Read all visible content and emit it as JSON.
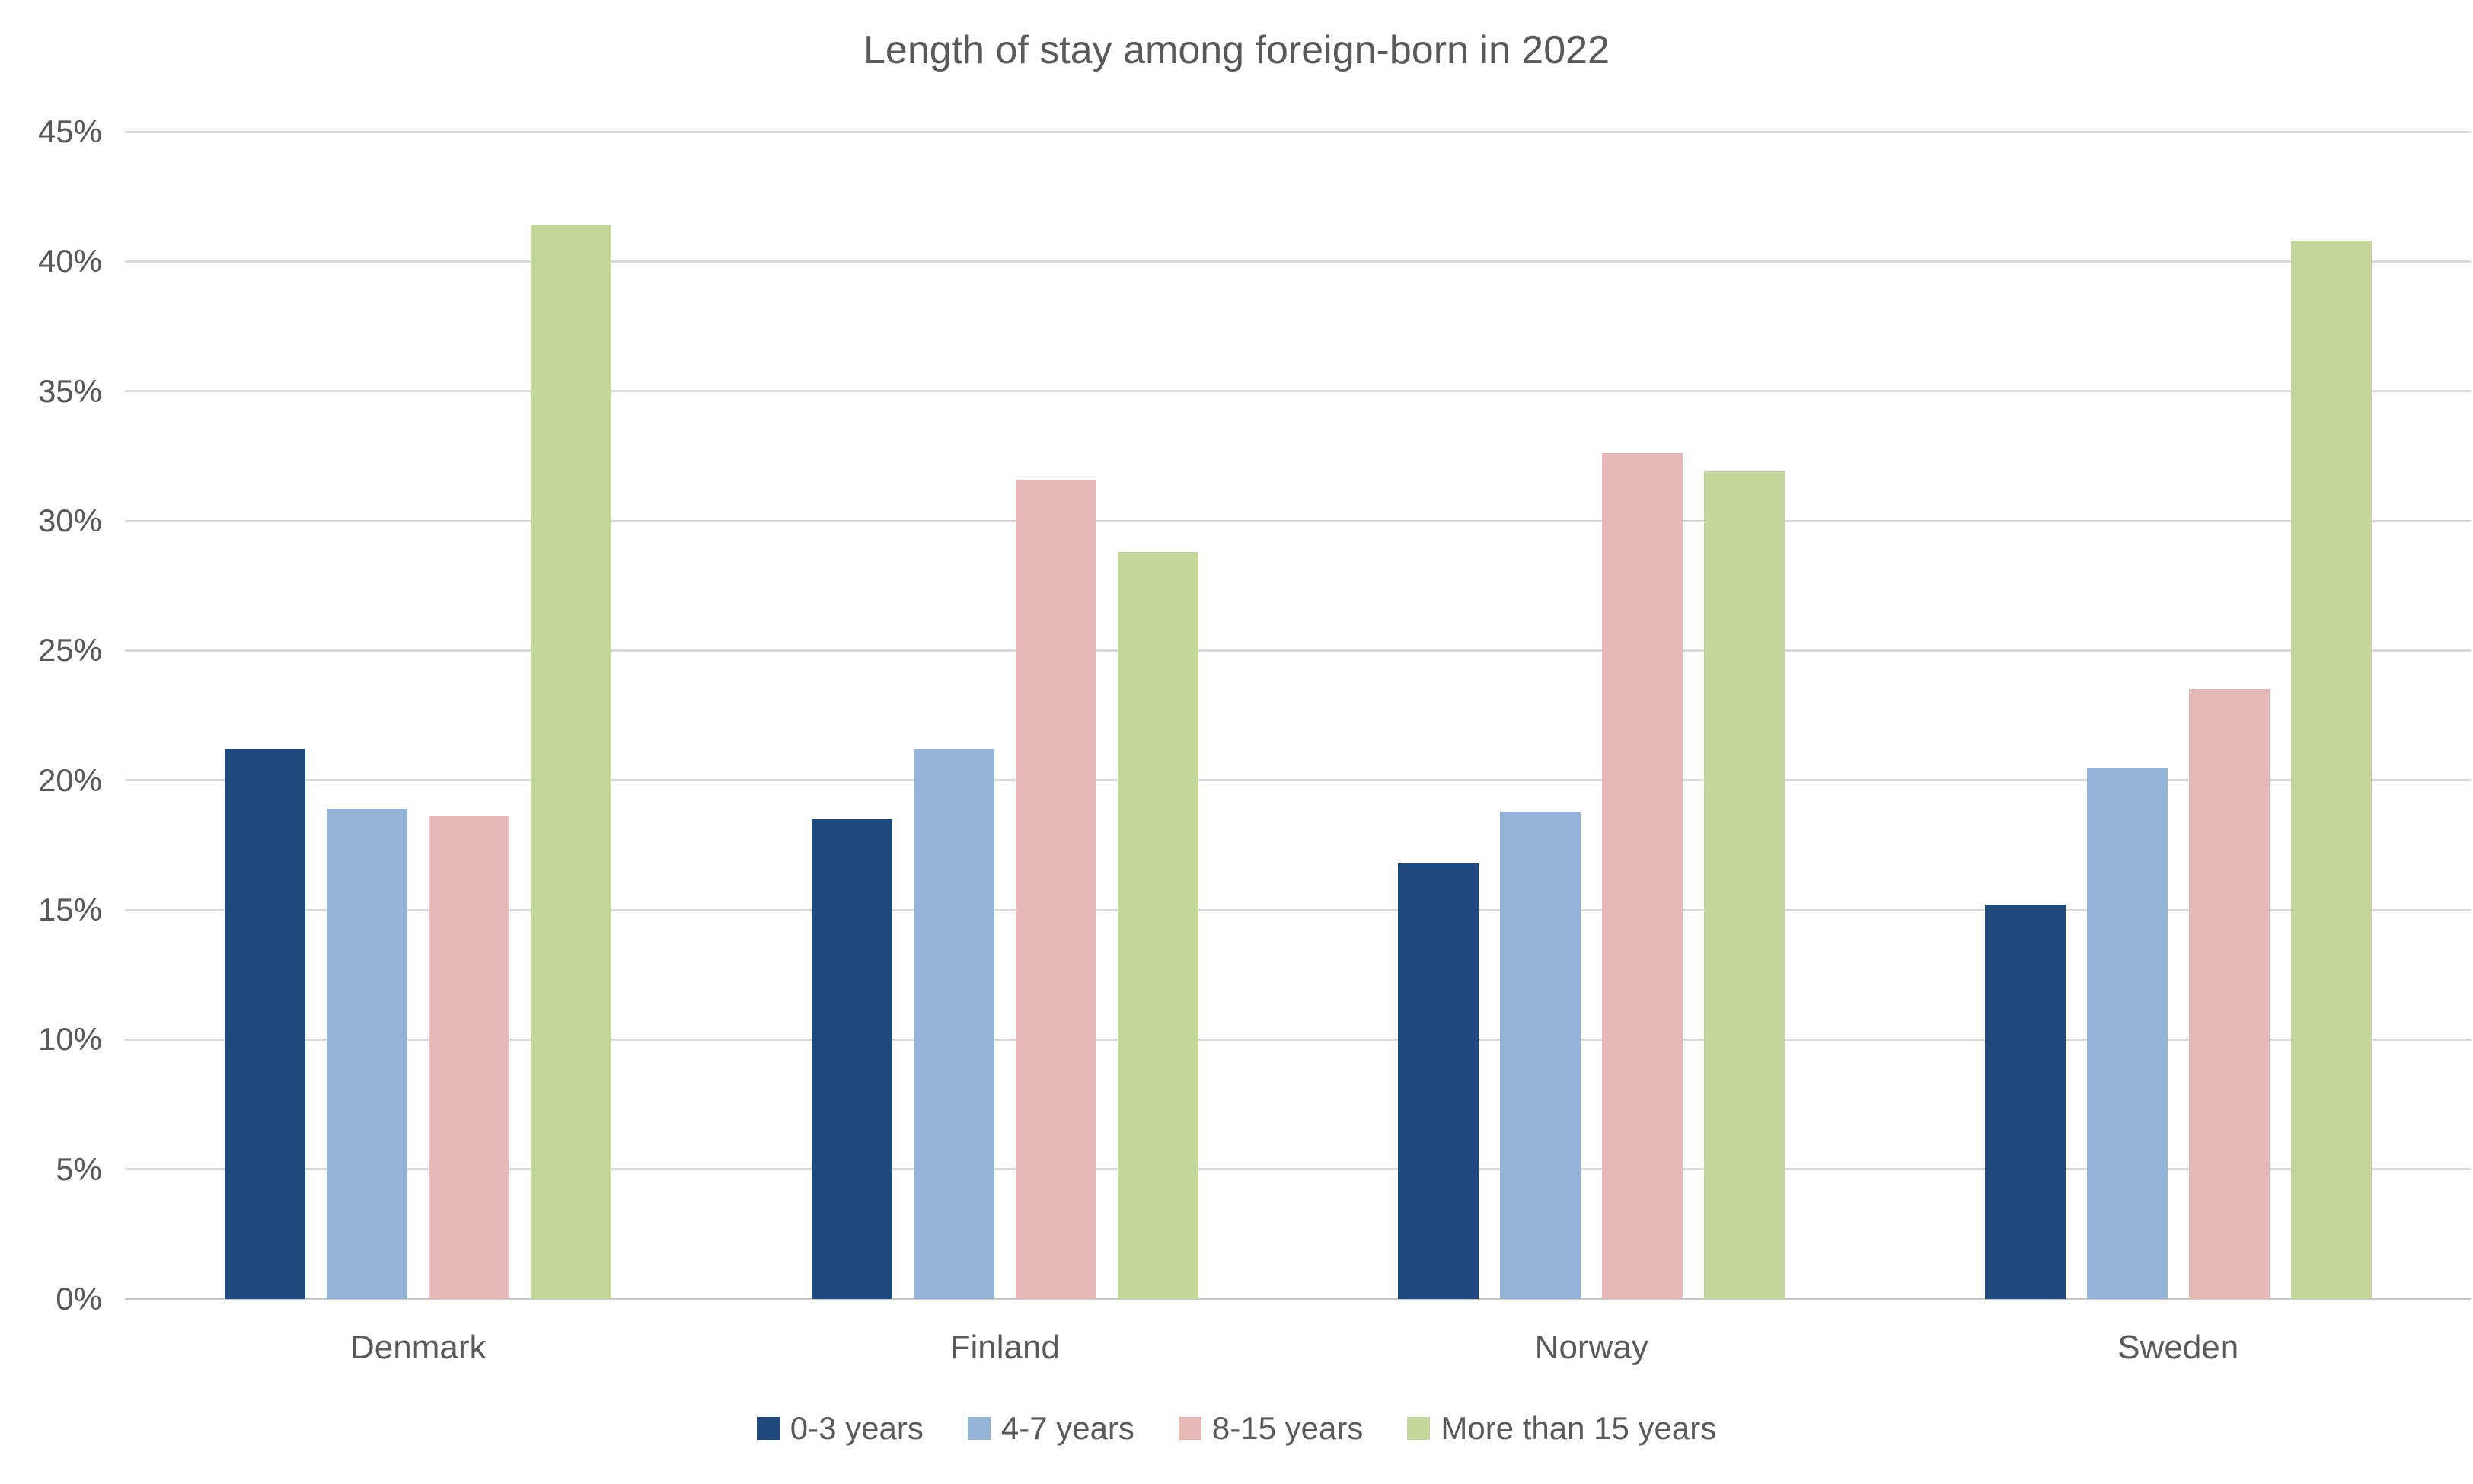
{
  "chart_data": {
    "type": "bar",
    "title": "Length of stay among foreign-born in 2022",
    "categories": [
      "Denmark",
      "Finland",
      "Norway",
      "Sweden"
    ],
    "series": [
      {
        "name": "0-3 years",
        "color": "#1F497D",
        "values": [
          21.2,
          18.5,
          16.8,
          15.2
        ]
      },
      {
        "name": "4-7 years",
        "color": "#95B3D7",
        "values": [
          18.9,
          21.2,
          18.8,
          20.5
        ]
      },
      {
        "name": "8-15 years",
        "color": "#E6B9B8",
        "values": [
          18.6,
          31.6,
          32.6,
          23.5
        ]
      },
      {
        "name": "More than 15 years",
        "color": "#C3D69B",
        "values": [
          41.4,
          28.8,
          31.9,
          40.8
        ]
      }
    ],
    "xlabel": "",
    "ylabel": "",
    "ylim": [
      0,
      45
    ],
    "y_ticks": [
      {
        "value": 0,
        "label": "0%"
      },
      {
        "value": 5,
        "label": "5%"
      },
      {
        "value": 10,
        "label": "10%"
      },
      {
        "value": 15,
        "label": "15%"
      },
      {
        "value": 20,
        "label": "20%"
      },
      {
        "value": 25,
        "label": "25%"
      },
      {
        "value": 30,
        "label": "30%"
      },
      {
        "value": 35,
        "label": "35%"
      },
      {
        "value": 40,
        "label": "40%"
      },
      {
        "value": 45,
        "label": "45%"
      }
    ],
    "grid": true,
    "legend_position": "bottom"
  },
  "style": {
    "text_color": "#595959",
    "gridline_color": "#D9D9D9",
    "baseline_color": "#C6C6C6",
    "background": "#FFFFFF"
  }
}
